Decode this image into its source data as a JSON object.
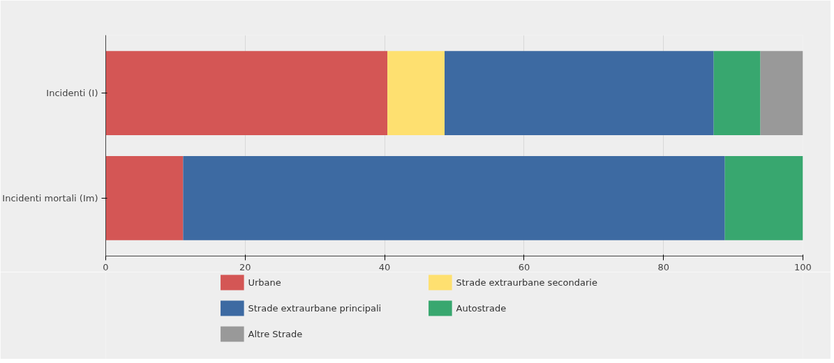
{
  "chart_data": {
    "type": "bar",
    "orientation": "horizontal",
    "stacked": true,
    "categories": [
      "Incidenti (I)",
      "Incidenti mortali (Im)"
    ],
    "series": [
      {
        "name": "Urbane",
        "color": "#d45655",
        "values": [
          40.4,
          11.1
        ]
      },
      {
        "name": "Strade extraurbane secondarie",
        "color": "#fee070",
        "values": [
          8.2,
          0
        ]
      },
      {
        "name": "Strade extraurbane principali",
        "color": "#3d6aa2",
        "values": [
          38.6,
          77.7
        ]
      },
      {
        "name": "Autostrade",
        "color": "#38a76f",
        "values": [
          6.7,
          11.2
        ]
      },
      {
        "name": "Altre Strade",
        "color": "#999999",
        "values": [
          6.1,
          0
        ]
      }
    ],
    "xlim": [
      0,
      100
    ],
    "xticks": [
      0,
      20,
      40,
      60,
      80,
      100
    ],
    "grid": "x",
    "legend": "bottom"
  }
}
